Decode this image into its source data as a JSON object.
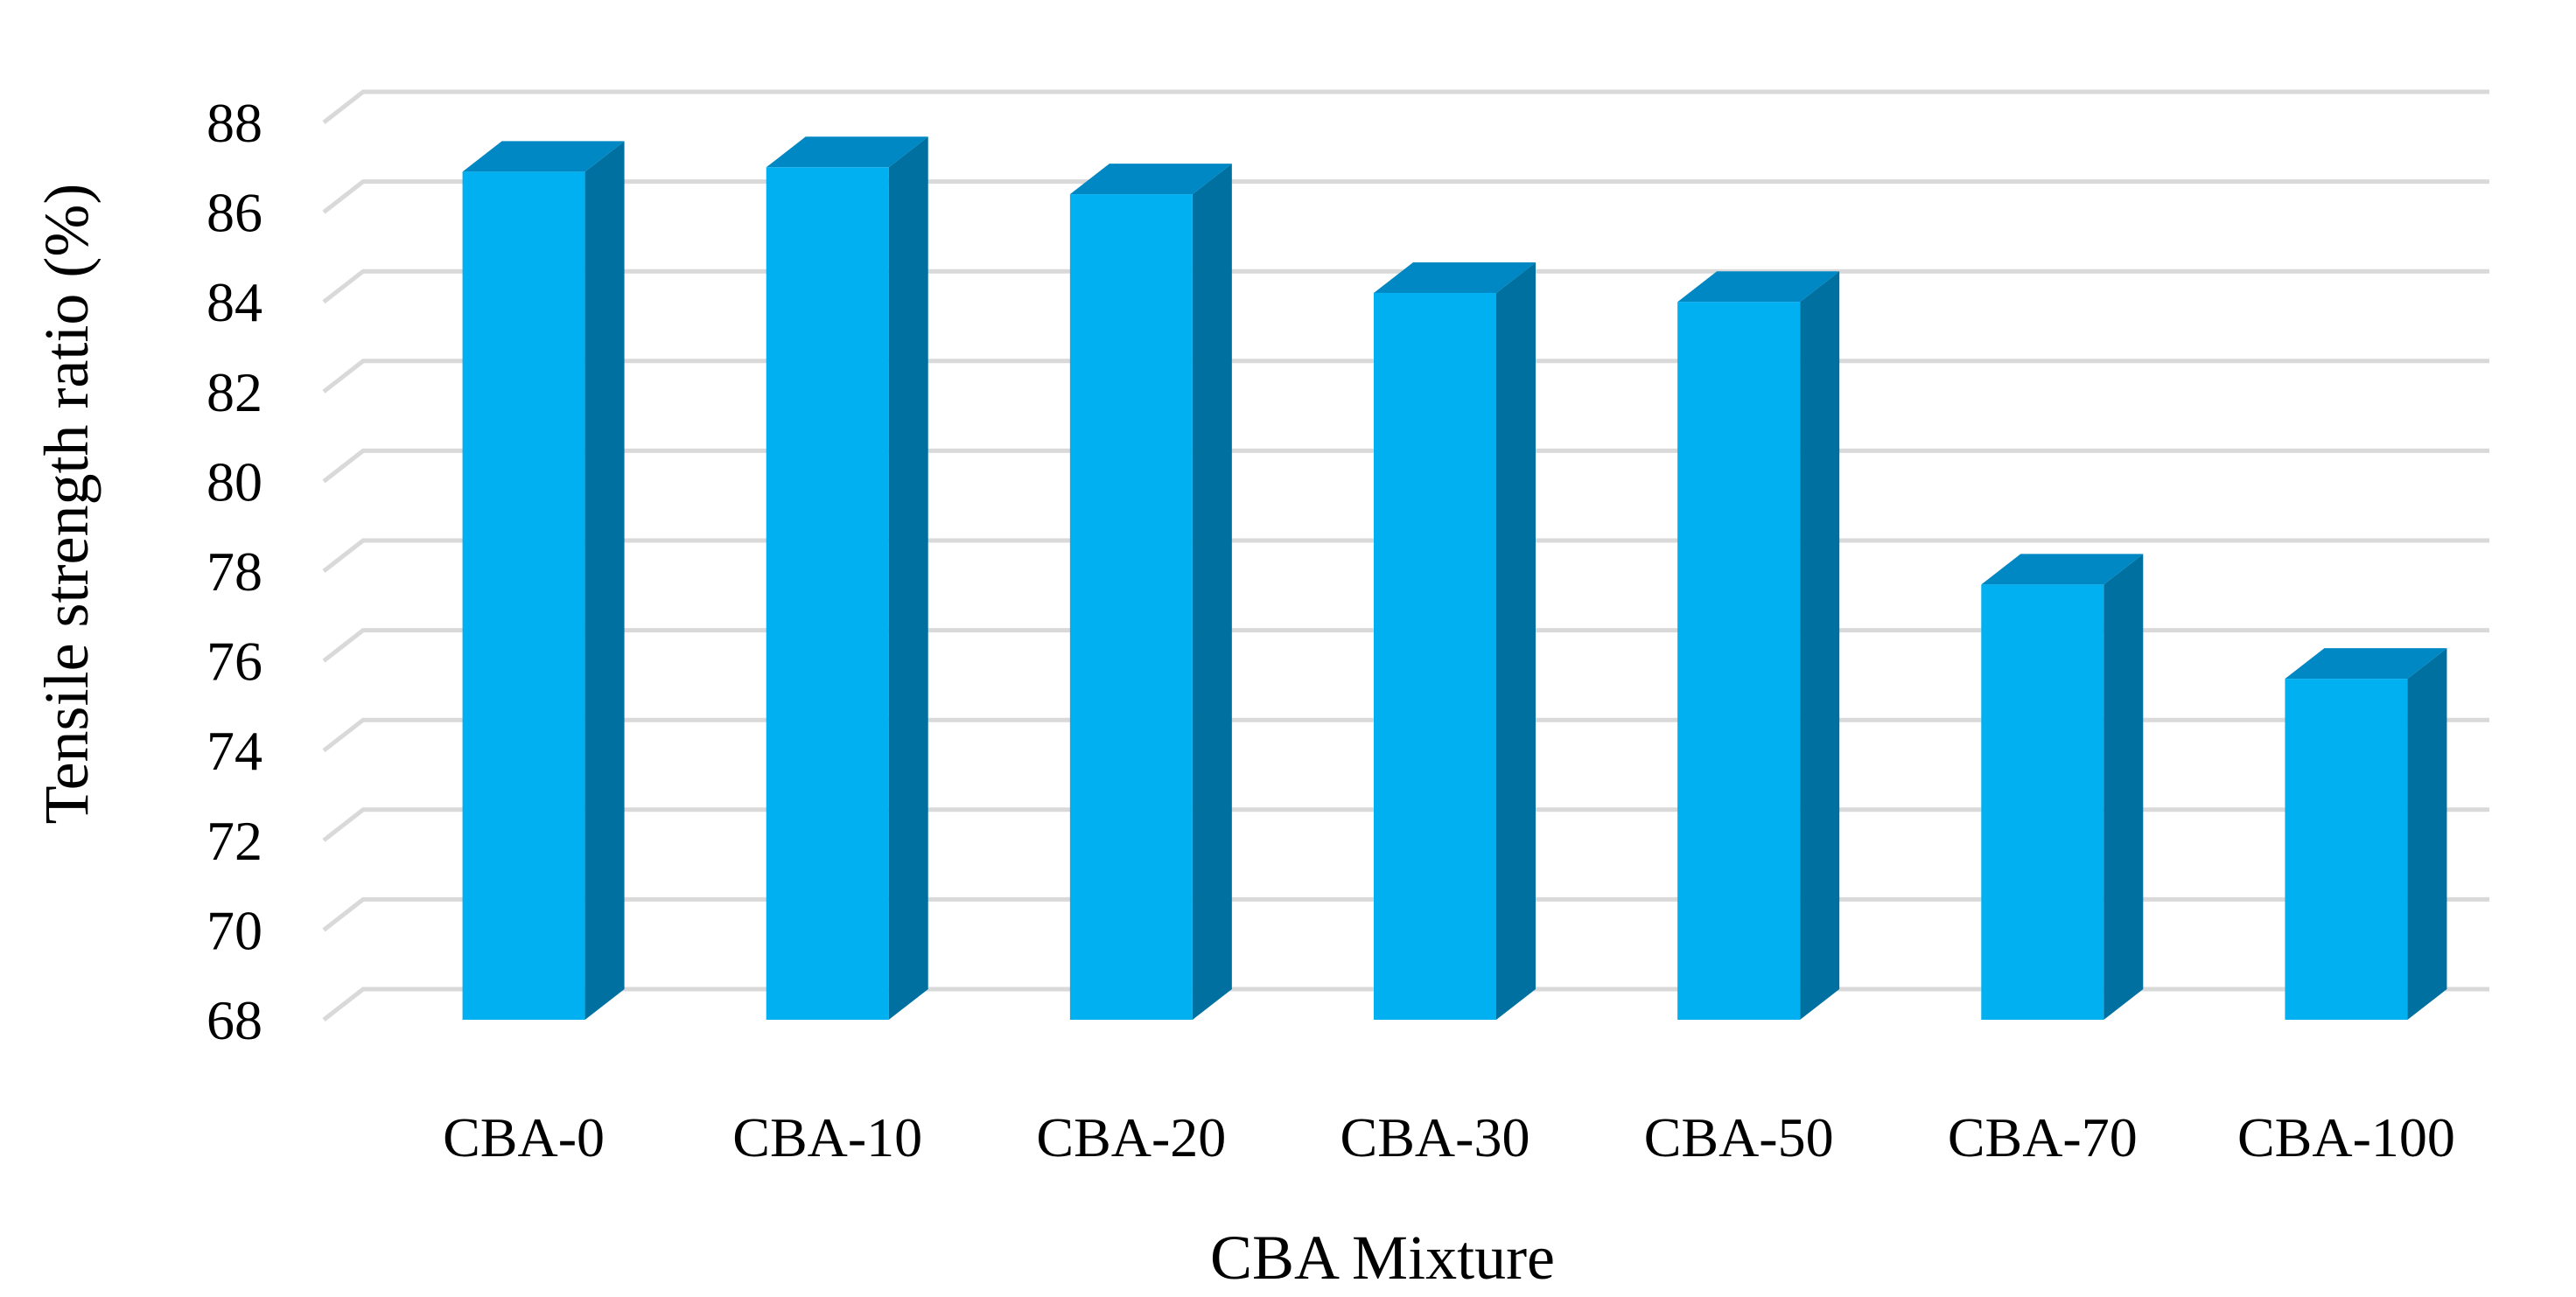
{
  "chart_data": {
    "type": "bar",
    "style": "3d-column",
    "title": "",
    "xlabel": "CBA Mixture",
    "ylabel": "Tensile strength ratio (%)",
    "categories": [
      "CBA-0",
      "CBA-10",
      "CBA-20",
      "CBA-30",
      "CBA-50",
      "CBA-70",
      "CBA-100"
    ],
    "values": [
      86.9,
      87.0,
      86.4,
      84.2,
      84.0,
      77.7,
      75.6
    ],
    "ylim": [
      68,
      88
    ],
    "yticks": [
      "68",
      "70",
      "72",
      "74",
      "76",
      "78",
      "80",
      "82",
      "84",
      "86",
      "88"
    ],
    "grid": true,
    "legend": "none",
    "colors": {
      "bar_front": "#00b0f0",
      "bar_side": "#0070a0",
      "bar_top": "#0088c4",
      "grid": "#d9d9d9"
    }
  }
}
